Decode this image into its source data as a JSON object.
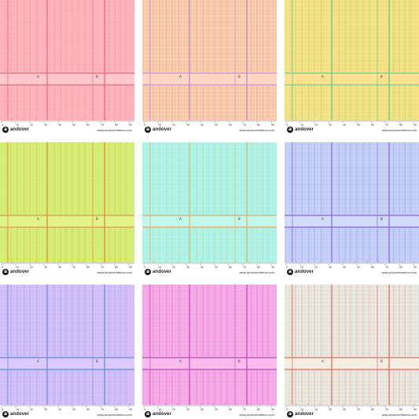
{
  "brand": "andover",
  "logo_letter": "a",
  "url": "www.andoverfabrics.com",
  "mark_a": "A",
  "mark_b": "B",
  "ruler_numbers": [
    "0",
    "10",
    "20",
    "30",
    "40",
    "50",
    "60",
    "70",
    "80",
    "90"
  ],
  "swatches": [
    {
      "name": "pink",
      "bg": "#ffb8bf",
      "fine": "#ff9aa6",
      "accent": "#f26a78",
      "band": "#ffc9cd",
      "bandLine": "#e06a76"
    },
    {
      "name": "peach",
      "bg": "#fdd2b2",
      "fine": "#e6a57a",
      "accent": "#b889d6",
      "band": "#ffd7c4",
      "bandLine": "#c88fd8"
    },
    {
      "name": "yellow",
      "bg": "#f7e58c",
      "fine": "#e5cb55",
      "accent": "#5cc98c",
      "band": "#ffe190",
      "bandLine": "#6ccf90"
    },
    {
      "name": "lime",
      "bg": "#d9ef7b",
      "fine": "#c5e05a",
      "accent": "#e08a3a",
      "band": "#e2f48a",
      "bandLine": "#d49a4a"
    },
    {
      "name": "aqua",
      "bg": "#b4f5ea",
      "fine": "#8fe5d6",
      "accent": "#e0b46a",
      "band": "#c2f7ee",
      "bandLine": "#d8a76a"
    },
    {
      "name": "periwinkle",
      "bg": "#c8d3f8",
      "fine": "#a9b8ef",
      "accent": "#8a6fe0",
      "band": "#d3dcfa",
      "bandLine": "#7e63d8"
    },
    {
      "name": "lavender",
      "bg": "#d6c4fa",
      "fine": "#bca7f2",
      "accent": "#6a8de6",
      "band": "#dccbff",
      "bandLine": "#5a86e0"
    },
    {
      "name": "magenta",
      "bg": "#f8aee8",
      "fine": "#ee8fdc",
      "accent": "#c252c2",
      "band": "#fbbcec",
      "bandLine": "#b447b8"
    },
    {
      "name": "cream",
      "bg": "#f4eadc",
      "fine": "#9fd3e8",
      "accent": "#e46d5e",
      "band": "#f7eee2",
      "bandLine": "#e06a5c"
    }
  ]
}
